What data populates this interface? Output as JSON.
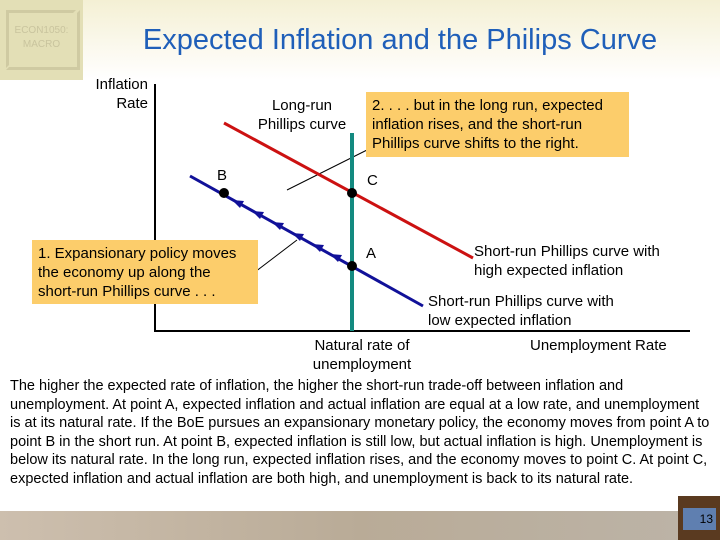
{
  "logo": {
    "text": "ECON1050: MACRO"
  },
  "title": "Expected Inflation and the Philips Curve",
  "diagram": {
    "y_axis_label": "Inflation Rate",
    "x_axis_label": "Unemployment Rate",
    "lrpc_label": "Long-run Phillips curve",
    "natural_rate_label": "Natural rate of unemployment",
    "srpc_high_label": "Short-run Phillips curve with high expected inflation",
    "srpc_low_label": "Short-run Phillips curve with low expected inflation",
    "points": {
      "a": "A",
      "b": "B",
      "c": "C"
    },
    "callout1": "1. Expansionary policy moves the economy up along the short-run Phillips curve . . .",
    "callout2": "2. . . . but in the long run, expected inflation rises, and the short-run Phillips curve shifts to the right.",
    "colors": {
      "lrpc": "#138a80",
      "srpc_high": "#cc1111",
      "srpc_low": "#111199",
      "callout": "#fccd6b"
    }
  },
  "body_text": "The higher the expected rate of inflation, the higher the short-run trade-off between inflation and unemployment. At point A, expected inflation and actual inflation are equal at a low rate, and unemployment is at its natural rate. If the BoE pursues an expansionary monetary policy, the economy moves from point A to point B in the short run. At point B, expected inflation is still low, but actual inflation is high. Unemployment is below its natural rate. In the long run, expected inflation rises, and the economy moves to point C. At point C, expected inflation and actual inflation are both high, and unemployment is back to its natural rate.",
  "page_number": "13"
}
